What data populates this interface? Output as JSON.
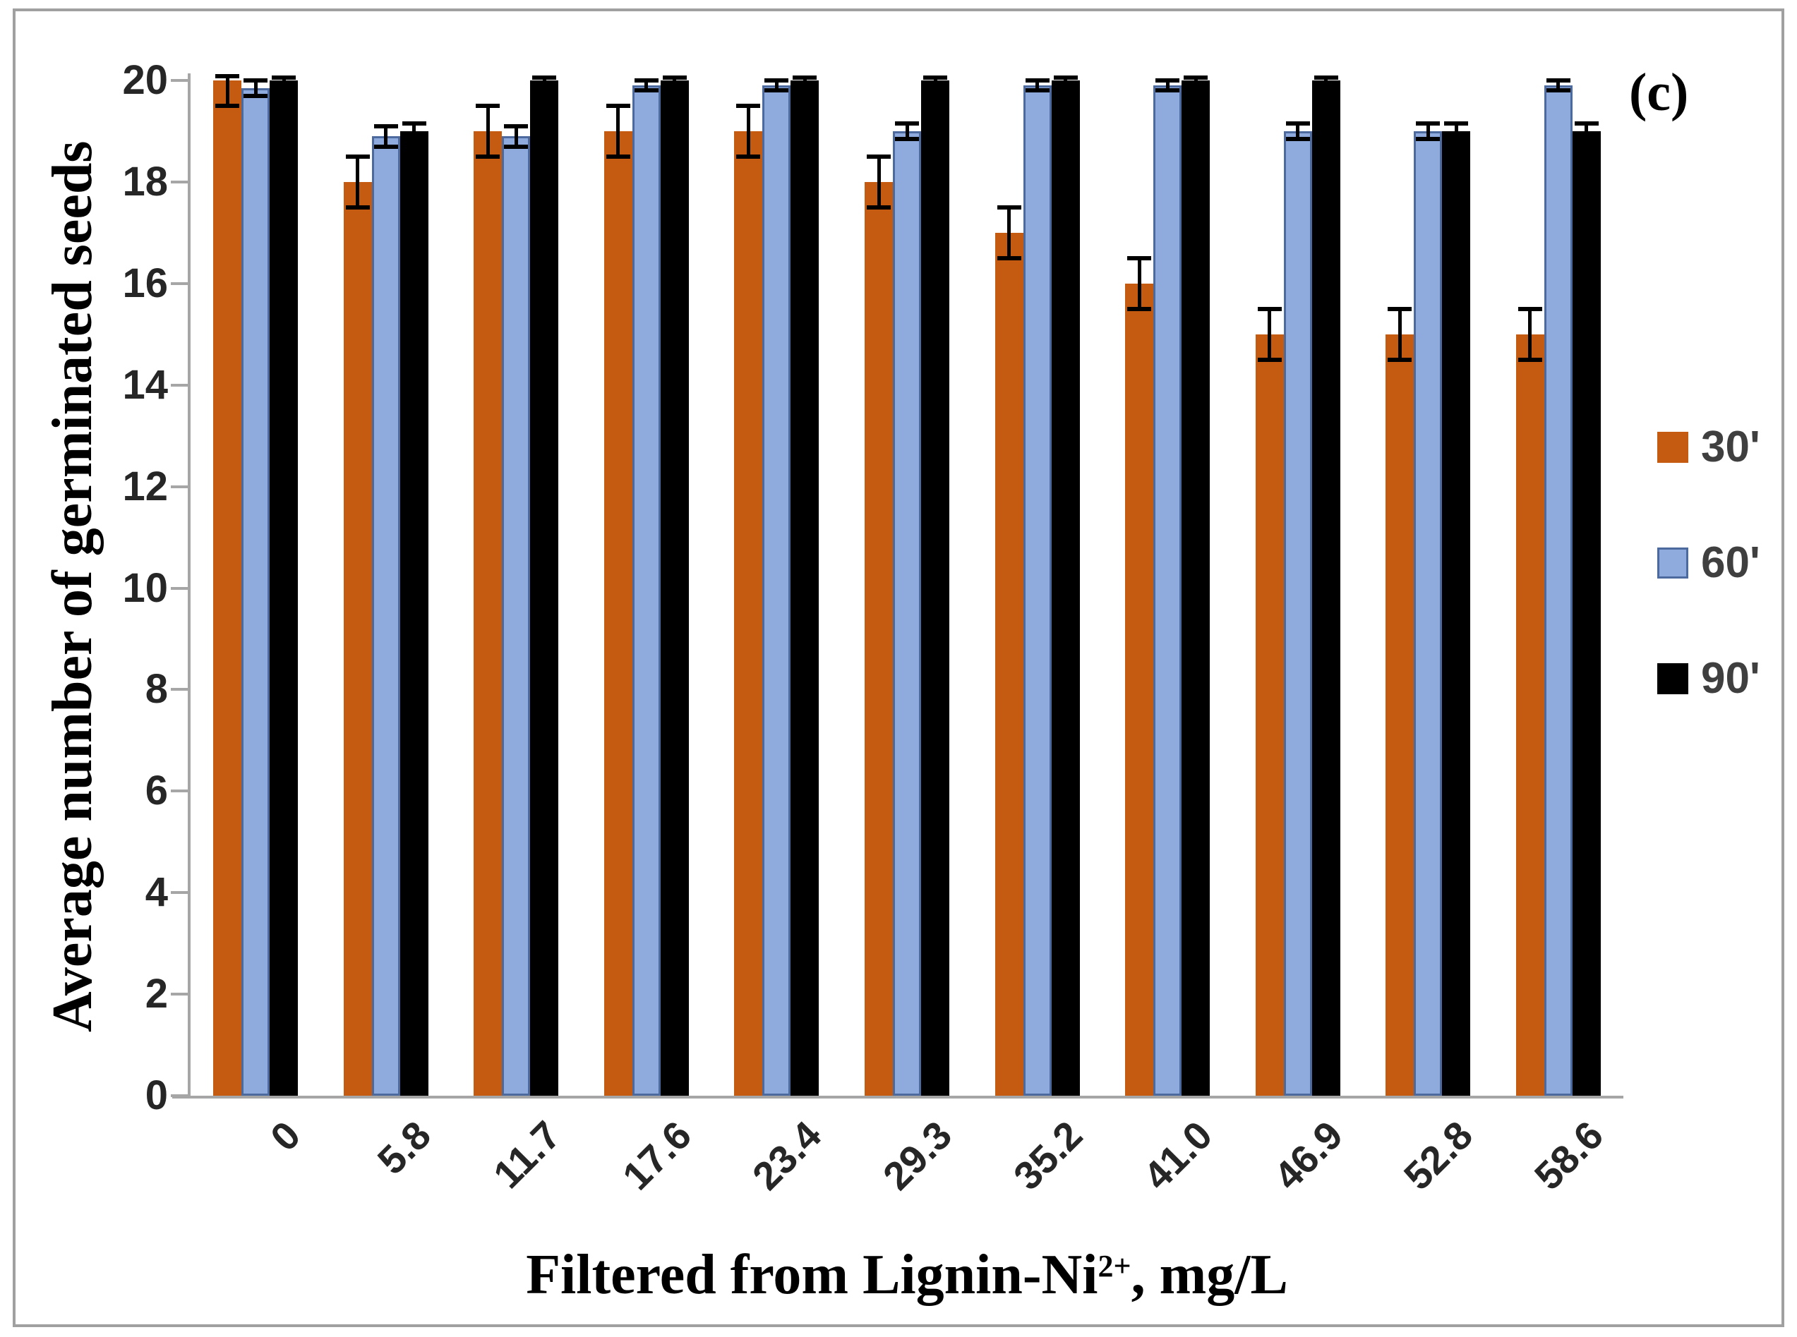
{
  "figure": {
    "panel_label": "(c)",
    "background": "#ffffff",
    "frame_color": "#a0a0a0"
  },
  "chart_data": {
    "type": "bar",
    "title": "",
    "xlabel": "Filtered from Lignin-Ni2+, mg/L",
    "xlabel_parts": {
      "prefix": "Filtered from Lignin-Ni",
      "superscript": "2+",
      "suffix": ", mg/L"
    },
    "ylabel": "Average number of germinated seeds",
    "ylim": [
      0,
      20
    ],
    "ytick_step": 2,
    "grid": false,
    "legend_position": "right-middle",
    "axis_color": "#a6a6a6",
    "tick_label_color": "#262626",
    "error_bar_color": "#000000",
    "categories": [
      "0",
      "5.8",
      "11.7",
      "17.6",
      "23.4",
      "29.3",
      "35.2",
      "41.0",
      "46.9",
      "52.8",
      "58.6"
    ],
    "series": [
      {
        "name": "30'",
        "color": "#c55a11",
        "values": [
          20,
          18,
          19,
          19,
          19,
          18,
          17,
          16,
          15,
          15,
          15
        ],
        "errors": [
          0.5,
          0.5,
          0.5,
          0.5,
          0.5,
          0.5,
          0.5,
          0.5,
          0.5,
          0.5,
          0.5
        ]
      },
      {
        "name": "60'",
        "color": "#8faadc",
        "border_color": "#4d6a9f",
        "values": [
          19.85,
          18.9,
          18.9,
          19.9,
          19.9,
          19,
          19.9,
          19.9,
          19,
          19,
          19.9
        ],
        "errors": [
          0.15,
          0.2,
          0.2,
          0.1,
          0.1,
          0.15,
          0.1,
          0.1,
          0.15,
          0.15,
          0.1
        ]
      },
      {
        "name": "90'",
        "color": "#000000",
        "values": [
          20,
          19,
          20,
          20,
          20,
          20,
          20,
          20,
          20,
          19,
          19
        ],
        "errors": [
          0.05,
          0.15,
          0.05,
          0.05,
          0.05,
          0.05,
          0.05,
          0.05,
          0.05,
          0.15,
          0.15
        ]
      }
    ]
  }
}
